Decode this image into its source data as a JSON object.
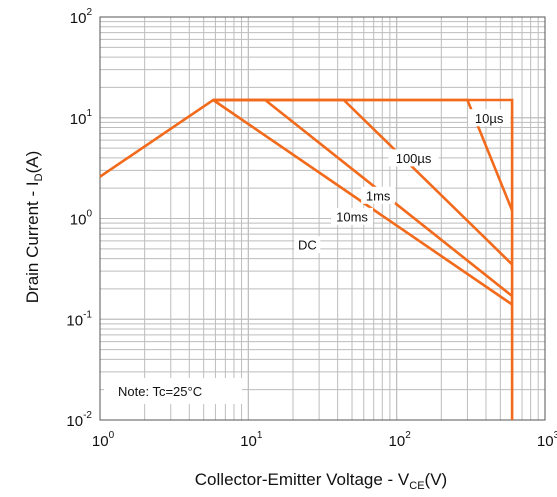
{
  "chart_data": {
    "type": "line",
    "title": "",
    "xlabel": {
      "main": "Collector-Emitter Voltage - V",
      "sub": "CE",
      "suffix": "(V)"
    },
    "ylabel": {
      "main": "Drain Current - I",
      "sub": "D",
      "suffix": "(A)"
    },
    "x_scale": "log",
    "y_scale": "log",
    "xlim": [
      1,
      1000
    ],
    "ylim": [
      0.01,
      100
    ],
    "x_ticks": [
      {
        "base": "10",
        "exp": "0"
      },
      {
        "base": "10",
        "exp": "1"
      },
      {
        "base": "10",
        "exp": "2"
      },
      {
        "base": "10",
        "exp": "3"
      }
    ],
    "y_ticks": [
      {
        "base": "10",
        "exp": "-2"
      },
      {
        "base": "10",
        "exp": "-1"
      },
      {
        "base": "10",
        "exp": "0"
      },
      {
        "base": "10",
        "exp": "1"
      },
      {
        "base": "10",
        "exp": "2"
      }
    ],
    "grid": true,
    "line_color": "#f26a1b",
    "series": [
      {
        "name": "10µs",
        "x": [
          1,
          5.8,
          600,
          600
        ],
        "y": [
          2.6,
          15,
          15,
          0.01
        ]
      },
      {
        "name": "100µs",
        "x": [
          5.8,
          300,
          600
        ],
        "y": [
          15,
          15,
          1.2
        ]
      },
      {
        "name": "1ms",
        "x": [
          5.8,
          44,
          600
        ],
        "y": [
          15,
          15,
          0.35
        ]
      },
      {
        "name": "10ms",
        "x": [
          5.8,
          13,
          600
        ],
        "y": [
          15,
          15,
          0.17
        ]
      },
      {
        "name": "DC",
        "x": [
          5.8,
          600
        ],
        "y": [
          15,
          0.14
        ]
      }
    ],
    "curve_labels": [
      {
        "text": "10µs",
        "x": 420,
        "y": 10
      },
      {
        "text": "100µs",
        "x": 130,
        "y": 4
      },
      {
        "text": "1ms",
        "x": 75,
        "y": 1.7
      },
      {
        "text": "10ms",
        "x": 50,
        "y": 1.05
      },
      {
        "text": "DC",
        "x": 25,
        "y": 0.55
      }
    ],
    "note": "Note: Tc=25°C"
  }
}
